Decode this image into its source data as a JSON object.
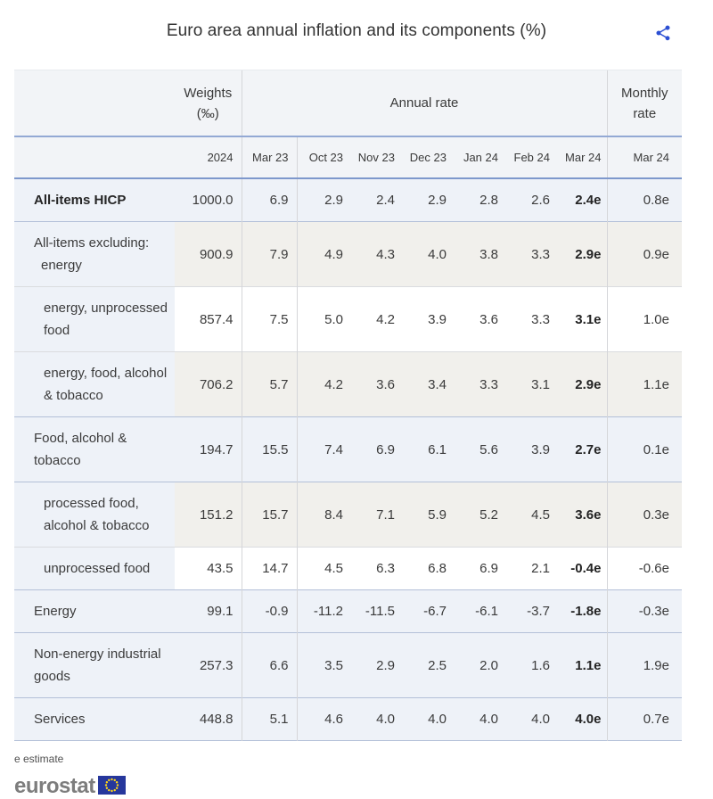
{
  "title": "Euro area annual inflation and its components (%)",
  "colors": {
    "accent_header_line": "#7e98cc",
    "row_blue": "#eef2f8",
    "row_grey": "#f1f0ec",
    "share_icon_blue": "#2b4fd3",
    "flag_blue": "#26379c",
    "star_yellow": "#ffd617"
  },
  "table": {
    "header": {
      "weights_line1": "Weights",
      "weights_line2": "(‰)",
      "annual_rate": "Annual rate",
      "monthly_rate": "Monthly rate",
      "subheader": [
        "2024",
        "Mar 23",
        "Oct 23",
        "Nov 23",
        "Dec 23",
        "Jan 24",
        "Feb 24",
        "Mar 24",
        "Mar 24"
      ]
    },
    "rows": [
      {
        "label_lines": [
          "All-items HICP"
        ],
        "indent": false,
        "hang": false,
        "bold": true,
        "tint": "blue",
        "sep": "blue",
        "weights": "1000.0",
        "values": [
          "6.9",
          "2.9",
          "2.4",
          "2.9",
          "2.8",
          "2.6",
          "2.4e"
        ],
        "monthly": "0.8e"
      },
      {
        "label_lines": [
          "All-items excluding:",
          "energy"
        ],
        "indent": false,
        "hang": true,
        "bold": false,
        "tint": "grey",
        "sep": "grey",
        "weights": "900.9",
        "values": [
          "7.9",
          "4.9",
          "4.3",
          "4.0",
          "3.8",
          "3.3",
          "2.9e"
        ],
        "monthly": "0.9e"
      },
      {
        "label_lines": [
          "energy, unprocessed",
          "food"
        ],
        "indent": true,
        "hang": false,
        "bold": false,
        "tint": "white",
        "sep": "grey",
        "weights": "857.4",
        "values": [
          "7.5",
          "5.0",
          "4.2",
          "3.9",
          "3.6",
          "3.3",
          "3.1e"
        ],
        "monthly": "1.0e"
      },
      {
        "label_lines": [
          "energy, food, alcohol",
          "& tobacco"
        ],
        "indent": true,
        "hang": false,
        "bold": false,
        "tint": "grey",
        "sep": "blue",
        "weights": "706.2",
        "values": [
          "5.7",
          "4.2",
          "3.6",
          "3.4",
          "3.3",
          "3.1",
          "2.9e"
        ],
        "monthly": "1.1e"
      },
      {
        "label_lines": [
          "Food, alcohol &",
          "tobacco"
        ],
        "indent": false,
        "hang": false,
        "bold": false,
        "tint": "blue",
        "sep": "blue",
        "weights": "194.7",
        "values": [
          "15.5",
          "7.4",
          "6.9",
          "6.1",
          "5.6",
          "3.9",
          "2.7e"
        ],
        "monthly": "0.1e"
      },
      {
        "label_lines": [
          "processed food,",
          "alcohol & tobacco"
        ],
        "indent": true,
        "hang": false,
        "bold": false,
        "tint": "grey",
        "sep": "grey",
        "weights": "151.2",
        "values": [
          "15.7",
          "8.4",
          "7.1",
          "5.9",
          "5.2",
          "4.5",
          "3.6e"
        ],
        "monthly": "0.3e"
      },
      {
        "label_lines": [
          "unprocessed food"
        ],
        "indent": true,
        "hang": false,
        "bold": false,
        "tint": "white",
        "sep": "blue",
        "weights": "43.5",
        "values": [
          "14.7",
          "4.5",
          "6.3",
          "6.8",
          "6.9",
          "2.1",
          "-0.4e"
        ],
        "monthly": "-0.6e"
      },
      {
        "label_lines": [
          "Energy"
        ],
        "indent": false,
        "hang": false,
        "bold": false,
        "tint": "blue",
        "sep": "blue",
        "weights": "99.1",
        "values": [
          "-0.9",
          "-11.2",
          "-11.5",
          "-6.7",
          "-6.1",
          "-3.7",
          "-1.8e"
        ],
        "monthly": "-0.3e"
      },
      {
        "label_lines": [
          "Non-energy industrial",
          "goods"
        ],
        "indent": false,
        "hang": false,
        "bold": false,
        "tint": "blue",
        "sep": "blue",
        "weights": "257.3",
        "values": [
          "6.6",
          "3.5",
          "2.9",
          "2.5",
          "2.0",
          "1.6",
          "1.1e"
        ],
        "monthly": "1.9e"
      },
      {
        "label_lines": [
          "Services"
        ],
        "indent": false,
        "hang": false,
        "bold": false,
        "tint": "blue",
        "sep": "blue",
        "weights": "448.8",
        "values": [
          "5.1",
          "4.6",
          "4.0",
          "4.0",
          "4.0",
          "4.0",
          "4.0e"
        ],
        "monthly": "0.7e"
      }
    ]
  },
  "footnote": "e estimate",
  "logo_text": "eurostat"
}
